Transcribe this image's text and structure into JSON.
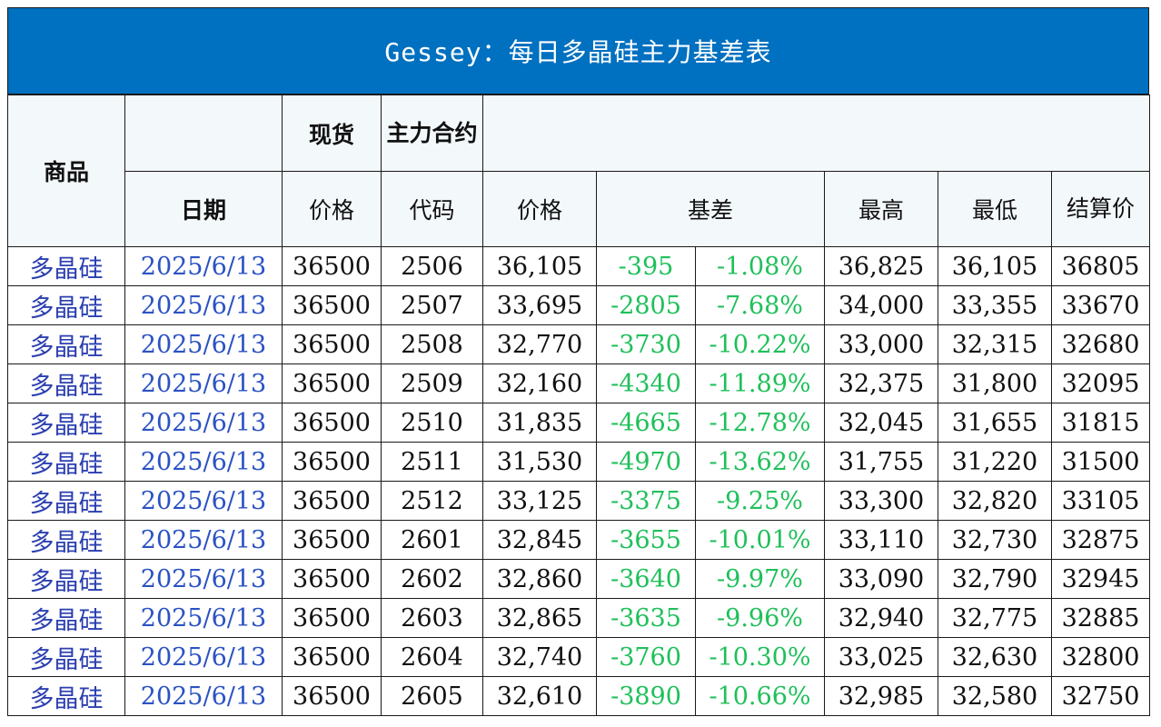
{
  "title": "Gessey：每日多晶硅主力基差表",
  "header": {
    "product": "商品",
    "spot": "现货",
    "main_contract": "主力合约",
    "date": "日期",
    "spot_price": "价格",
    "code": "代码",
    "price": "价格",
    "basis": "基差",
    "high": "最高",
    "low": "最低",
    "settle": "结算价"
  },
  "rows": [
    {
      "product": "多晶硅",
      "date": "2025/6/13",
      "spot": "36500",
      "code": "2506",
      "price": "36,105",
      "basis": "-395",
      "basis_pct": "-1.08%",
      "high": "36,825",
      "low": "36,105",
      "settle": "36805"
    },
    {
      "product": "多晶硅",
      "date": "2025/6/13",
      "spot": "36500",
      "code": "2507",
      "price": "33,695",
      "basis": "-2805",
      "basis_pct": "-7.68%",
      "high": "34,000",
      "low": "33,355",
      "settle": "33670"
    },
    {
      "product": "多晶硅",
      "date": "2025/6/13",
      "spot": "36500",
      "code": "2508",
      "price": "32,770",
      "basis": "-3730",
      "basis_pct": "-10.22%",
      "high": "33,000",
      "low": "32,315",
      "settle": "32680"
    },
    {
      "product": "多晶硅",
      "date": "2025/6/13",
      "spot": "36500",
      "code": "2509",
      "price": "32,160",
      "basis": "-4340",
      "basis_pct": "-11.89%",
      "high": "32,375",
      "low": "31,800",
      "settle": "32095"
    },
    {
      "product": "多晶硅",
      "date": "2025/6/13",
      "spot": "36500",
      "code": "2510",
      "price": "31,835",
      "basis": "-4665",
      "basis_pct": "-12.78%",
      "high": "32,045",
      "low": "31,655",
      "settle": "31815"
    },
    {
      "product": "多晶硅",
      "date": "2025/6/13",
      "spot": "36500",
      "code": "2511",
      "price": "31,530",
      "basis": "-4970",
      "basis_pct": "-13.62%",
      "high": "31,755",
      "low": "31,220",
      "settle": "31500"
    },
    {
      "product": "多晶硅",
      "date": "2025/6/13",
      "spot": "36500",
      "code": "2512",
      "price": "33,125",
      "basis": "-3375",
      "basis_pct": "-9.25%",
      "high": "33,300",
      "low": "32,820",
      "settle": "33105"
    },
    {
      "product": "多晶硅",
      "date": "2025/6/13",
      "spot": "36500",
      "code": "2601",
      "price": "32,845",
      "basis": "-3655",
      "basis_pct": "-10.01%",
      "high": "33,110",
      "low": "32,730",
      "settle": "32875"
    },
    {
      "product": "多晶硅",
      "date": "2025/6/13",
      "spot": "36500",
      "code": "2602",
      "price": "32,860",
      "basis": "-3640",
      "basis_pct": "-9.97%",
      "high": "33,090",
      "low": "32,790",
      "settle": "32945"
    },
    {
      "product": "多晶硅",
      "date": "2025/6/13",
      "spot": "36500",
      "code": "2603",
      "price": "32,865",
      "basis": "-3635",
      "basis_pct": "-9.96%",
      "high": "32,940",
      "low": "32,775",
      "settle": "32885"
    },
    {
      "product": "多晶硅",
      "date": "2025/6/13",
      "spot": "36500",
      "code": "2604",
      "price": "32,740",
      "basis": "-3760",
      "basis_pct": "-10.30%",
      "high": "33,025",
      "low": "32,630",
      "settle": "32800"
    },
    {
      "product": "多晶硅",
      "date": "2025/6/13",
      "spot": "36500",
      "code": "2605",
      "price": "32,610",
      "basis": "-3890",
      "basis_pct": "-10.66%",
      "high": "32,985",
      "low": "32,580",
      "settle": "32750"
    }
  ],
  "colors": {
    "title_bg": "#0070c0",
    "header_bg": "#f3f8fb",
    "product_text": "#2b3fb0",
    "date_text": "#2b52c4",
    "negative_text": "#1fc05a"
  }
}
